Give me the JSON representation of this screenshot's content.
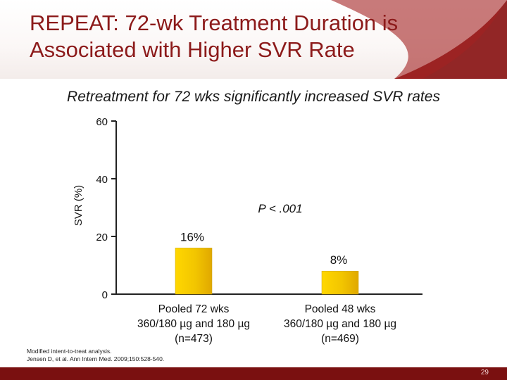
{
  "slide": {
    "title_line1": "REPEAT: 72-wk Treatment Duration is",
    "title_line2": "Associated with Higher SVR Rate",
    "subtitle": "Retreatment for 72 wks significantly increased SVR rates",
    "footnote_line1": "Modified intent-to-treat analysis.",
    "footnote_line2": "Jensen D, et al. Ann Intern Med. 2009;150:528-540.",
    "page_number": "29",
    "colors": {
      "brand": "#8c1a1a",
      "footer": "#7a1010",
      "bar": "#f2c500"
    }
  },
  "chart_data": {
    "type": "bar",
    "ylabel": "SVR (%)",
    "ylim": [
      0,
      60
    ],
    "yticks": [
      "60",
      "40",
      "20",
      "0"
    ],
    "ytick_values": [
      60,
      40,
      20,
      0
    ],
    "annotation": "P < .001",
    "categories": [
      {
        "line1": "Pooled 72 wks",
        "line2": "360/180 µg and 180 µg",
        "line3": "(n=473)"
      },
      {
        "line1": "Pooled 48 wks",
        "line2": "360/180 µg and 180 µg",
        "line3": "(n=469)"
      }
    ],
    "values": [
      16,
      8
    ],
    "value_labels": [
      "16%",
      "8%"
    ]
  }
}
